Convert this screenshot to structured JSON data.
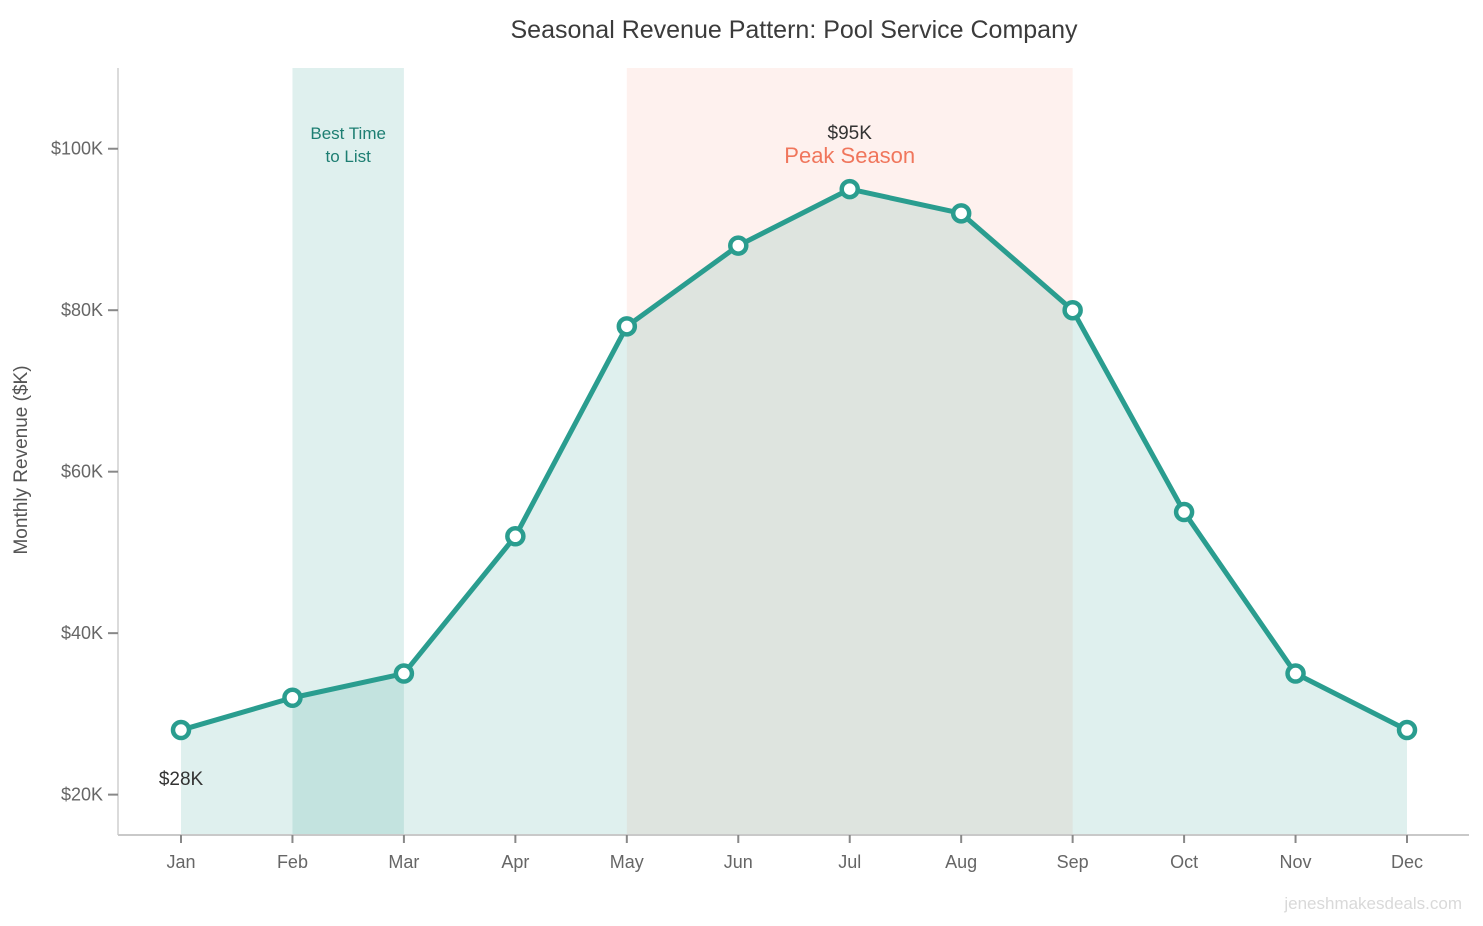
{
  "title": "Seasonal Revenue Pattern: Pool Service Company",
  "watermark": "jeneshmakesdeals.com",
  "chart_data": {
    "type": "line",
    "title": "Seasonal Revenue Pattern: Pool Service Company",
    "xlabel": "",
    "ylabel": "Monthly Revenue ($K)",
    "categories": [
      "Jan",
      "Feb",
      "Mar",
      "Apr",
      "May",
      "Jun",
      "Jul",
      "Aug",
      "Sep",
      "Oct",
      "Nov",
      "Dec"
    ],
    "series": [
      {
        "name": "Monthly Revenue",
        "values": [
          28,
          32,
          35,
          52,
          78,
          88,
          95,
          92,
          80,
          55,
          35,
          28
        ]
      }
    ],
    "ylim": [
      15,
      110
    ],
    "yticks": [
      20,
      40,
      60,
      80,
      100
    ],
    "ytick_labels": [
      "$20K",
      "$40K",
      "$60K",
      "$80K",
      "$100K"
    ],
    "grid": false,
    "legend": "none",
    "line_color": "#2a9d8f",
    "marker_style": "open-circle",
    "area_fill": "rgba(42,157,143,0.15)",
    "bands": [
      {
        "name": "best-time-to-list",
        "label": "Best Time to List",
        "label_lines": [
          "Best Time",
          "to List"
        ],
        "from": "Feb",
        "to": "Mar",
        "fill": "rgba(42,157,143,0.15)",
        "label_color": "#1d7e72",
        "label_dy": 71,
        "label_size": "band-label-best"
      },
      {
        "name": "peak-season",
        "label": "Peak Season",
        "label_lines": [
          "Peak Season"
        ],
        "from": "May",
        "to": "Sep",
        "fill": "rgba(242,122,90,0.10)",
        "label_color": "#f0765c",
        "label_dy": 95,
        "label_size": "band-label-peak"
      }
    ],
    "annotations": [
      {
        "text": "$28K",
        "month": "Jan",
        "value": 28,
        "placement": "below"
      },
      {
        "text": "$95K",
        "month": "Jul",
        "value": 95,
        "placement": "above"
      }
    ]
  }
}
